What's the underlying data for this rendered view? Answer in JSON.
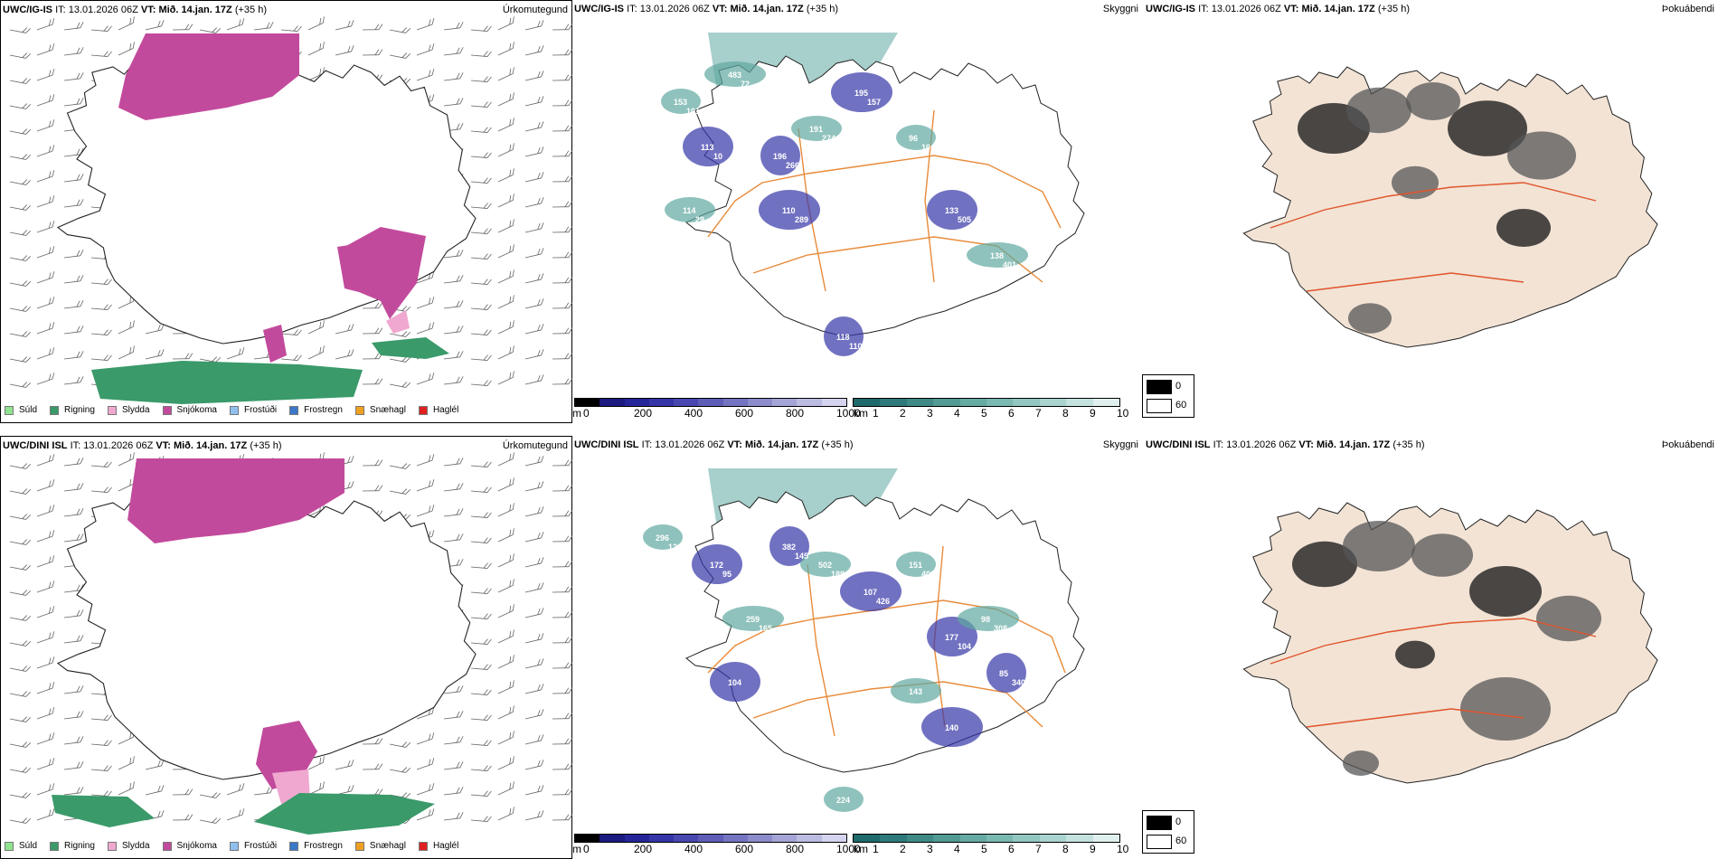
{
  "rows": [
    {
      "model": "UWC/IG-IS",
      "it_label": "IT:",
      "it_value": "13.01.2026 06Z",
      "vt_label": "VT:",
      "vt_value": "Mið. 14.jan. 17Z",
      "lead": "(+35 h)",
      "precip_title": "Úrkomutegund",
      "cloud_title": "Skyggni",
      "fog_title": "Þokuábendi",
      "cloud_labels": [
        "153",
        "113",
        "483",
        "196",
        "191",
        "195",
        "96",
        "133",
        "138",
        "118",
        "114",
        "110",
        "101",
        "10",
        "72",
        "266",
        "274",
        "157",
        "10",
        "505",
        "401",
        "110",
        "29",
        "289"
      ]
    },
    {
      "model": "UWC/DINI ISL",
      "it_label": "IT:",
      "it_value": "13.01.2026 06Z",
      "vt_label": "VT:",
      "vt_value": "Mið. 14.jan. 17Z",
      "lead": "(+35 h)",
      "precip_title": "Úrkomutegund",
      "cloud_title": "Skyggni",
      "fog_title": "Þokuábendi",
      "cloud_labels": [
        "296",
        "172",
        "259",
        "382",
        "502",
        "107",
        "151",
        "177",
        "98",
        "85",
        "143",
        "140",
        "224",
        "104",
        "123",
        "95",
        "165",
        "145",
        "188",
        "426",
        "408",
        "104",
        "308",
        "340"
      ]
    }
  ],
  "precip_legend": [
    {
      "label": "Súld",
      "color": "#8fe38f"
    },
    {
      "label": "Rigning",
      "color": "#3a9a6a"
    },
    {
      "label": "Slydda",
      "color": "#f0a8d0"
    },
    {
      "label": "Snjókoma",
      "color": "#c24a9c"
    },
    {
      "label": "Frostúði",
      "color": "#90c0f0"
    },
    {
      "label": "Frostregn",
      "color": "#3a78c8"
    },
    {
      "label": "Snæhagl",
      "color": "#f0a020"
    },
    {
      "label": "Haglél",
      "color": "#e02020"
    }
  ],
  "colorbar_m": {
    "unit": "m",
    "ticks": [
      "0",
      "200",
      "400",
      "600",
      "800",
      "1000"
    ],
    "colors": [
      "#000000",
      "#1a1a80",
      "#25259a",
      "#3535a8",
      "#4848b0",
      "#5e5eb8",
      "#7474c2",
      "#8c8ccc",
      "#a4a4d6",
      "#bcbce2",
      "#d4d4ee"
    ]
  },
  "colorbar_km": {
    "unit": "km",
    "ticks": [
      "1",
      "2",
      "3",
      "4",
      "5",
      "6",
      "7",
      "8",
      "9",
      "10"
    ],
    "colors": [
      "#1f6a6a",
      "#2e7a7a",
      "#3f8a86",
      "#529a94",
      "#66aaa4",
      "#7ab8b2",
      "#92c6c0",
      "#aad4d0",
      "#c4e2de",
      "#e0f0ee"
    ]
  },
  "fog_legend": [
    {
      "value": "0",
      "color": "#000000"
    },
    {
      "value": "60",
      "color": "#ffffff"
    }
  ]
}
